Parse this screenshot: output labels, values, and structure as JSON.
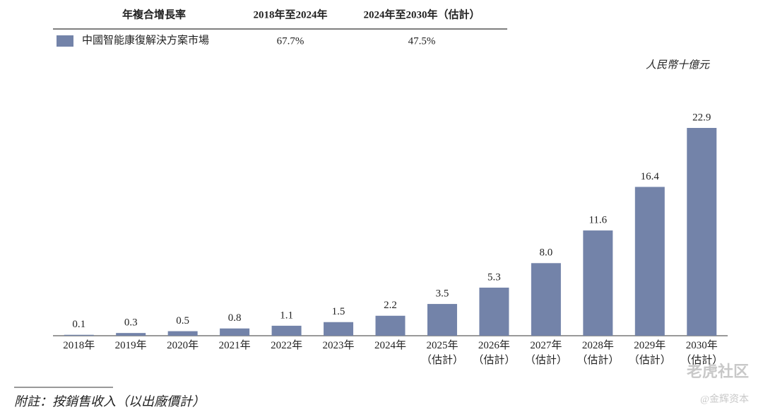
{
  "chart_data": {
    "type": "bar",
    "unit_label": "人民幣十億元",
    "categories": [
      "2018年",
      "2019年",
      "2020年",
      "2021年",
      "2022年",
      "2023年",
      "2024年",
      "2025年\n（估計）",
      "2026年\n（估計）",
      "2027年\n（估計）",
      "2028年\n（估計）",
      "2029年\n（估計）",
      "2030年\n（估計）"
    ],
    "series": [
      {
        "name": "中國智能康復解決方案市場",
        "color": "#7383a9",
        "values": [
          0.1,
          0.3,
          0.5,
          0.8,
          1.1,
          1.5,
          2.2,
          3.5,
          5.3,
          8.0,
          11.6,
          16.4,
          22.9
        ],
        "value_labels": [
          "0.1",
          "0.3",
          "0.5",
          "0.8",
          "1.1",
          "1.5",
          "2.2",
          "3.5",
          "5.3",
          "8.0",
          "11.6",
          "16.4",
          "22.9"
        ]
      }
    ]
  },
  "cagr_table": {
    "header": [
      "年複合增長率",
      "2018年至2024年",
      "2024年至2030年（估計）"
    ],
    "row": [
      "67.7%",
      "47.5%"
    ]
  },
  "footnote": "附註：按銷售收入（以出廠價計）",
  "watermark": [
    "老虎社区",
    "@金辉资本"
  ]
}
